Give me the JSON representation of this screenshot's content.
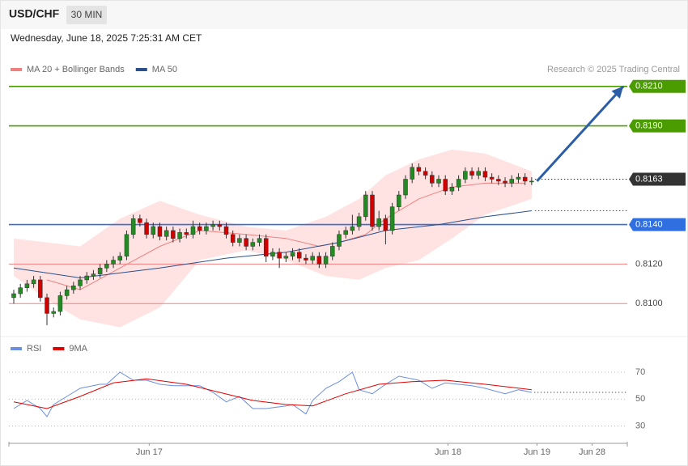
{
  "header": {
    "symbol": "USD/CHF",
    "interval": "30 MIN",
    "timestamp": "Wednesday, June 18, 2025 7:25:31 AM CET"
  },
  "chart_data": [
    {
      "type": "candlestick",
      "credit": "Research © 2025 Trading Central",
      "up_color": "#228b22",
      "down_color": "#d10000",
      "ohlc": [
        [
          0.8103,
          0.8107,
          0.81,
          0.8105
        ],
        [
          0.8105,
          0.811,
          0.8103,
          0.8108
        ],
        [
          0.8108,
          0.8112,
          0.8106,
          0.811
        ],
        [
          0.811,
          0.8114,
          0.8108,
          0.8112
        ],
        [
          0.8112,
          0.8114,
          0.8101,
          0.8103
        ],
        [
          0.8103,
          0.8105,
          0.8089,
          0.8095
        ],
        [
          0.8095,
          0.8098,
          0.8093,
          0.8096
        ],
        [
          0.8096,
          0.8106,
          0.8094,
          0.8104
        ],
        [
          0.8104,
          0.8109,
          0.8102,
          0.8107
        ],
        [
          0.8107,
          0.8111,
          0.8105,
          0.8109
        ],
        [
          0.8109,
          0.8114,
          0.8107,
          0.8112
        ],
        [
          0.8112,
          0.8116,
          0.811,
          0.8114
        ],
        [
          0.8114,
          0.8117,
          0.8112,
          0.8115
        ],
        [
          0.8115,
          0.812,
          0.8113,
          0.8118
        ],
        [
          0.8118,
          0.8122,
          0.8116,
          0.812
        ],
        [
          0.812,
          0.8124,
          0.8118,
          0.8122
        ],
        [
          0.8122,
          0.8126,
          0.812,
          0.8124
        ],
        [
          0.8124,
          0.8137,
          0.8122,
          0.8135
        ],
        [
          0.8135,
          0.8145,
          0.8133,
          0.8143
        ],
        [
          0.8143,
          0.8145,
          0.8139,
          0.8141
        ],
        [
          0.8141,
          0.8143,
          0.8133,
          0.8135
        ],
        [
          0.8135,
          0.8141,
          0.8133,
          0.8139
        ],
        [
          0.8139,
          0.8141,
          0.8132,
          0.8134
        ],
        [
          0.8134,
          0.8139,
          0.8132,
          0.8137
        ],
        [
          0.8137,
          0.8139,
          0.8131,
          0.8133
        ],
        [
          0.8133,
          0.8138,
          0.8131,
          0.8136
        ],
        [
          0.8136,
          0.8138,
          0.8133,
          0.8135
        ],
        [
          0.8135,
          0.8142,
          0.8133,
          0.8139
        ],
        [
          0.8139,
          0.8141,
          0.8135,
          0.8137
        ],
        [
          0.8137,
          0.8141,
          0.8135,
          0.8139
        ],
        [
          0.8139,
          0.8142,
          0.8137,
          0.814
        ],
        [
          0.814,
          0.8142,
          0.8137,
          0.8139
        ],
        [
          0.8139,
          0.8141,
          0.8133,
          0.8135
        ],
        [
          0.8135,
          0.8137,
          0.8129,
          0.8131
        ],
        [
          0.8131,
          0.8135,
          0.8129,
          0.8133
        ],
        [
          0.8133,
          0.8135,
          0.8127,
          0.8129
        ],
        [
          0.8129,
          0.8133,
          0.8127,
          0.8131
        ],
        [
          0.8131,
          0.8135,
          0.8129,
          0.8133
        ],
        [
          0.8133,
          0.8135,
          0.8121,
          0.8124
        ],
        [
          0.8124,
          0.8128,
          0.8122,
          0.8126
        ],
        [
          0.8126,
          0.8128,
          0.8118,
          0.8123
        ],
        [
          0.8123,
          0.8126,
          0.8121,
          0.8124
        ],
        [
          0.8124,
          0.8128,
          0.8122,
          0.8126
        ],
        [
          0.8126,
          0.8128,
          0.8121,
          0.8123
        ],
        [
          0.8123,
          0.8125,
          0.812,
          0.8122
        ],
        [
          0.8122,
          0.8126,
          0.812,
          0.8124
        ],
        [
          0.8124,
          0.8126,
          0.8118,
          0.812
        ],
        [
          0.812,
          0.8126,
          0.8118,
          0.8124
        ],
        [
          0.8124,
          0.8131,
          0.8122,
          0.8129
        ],
        [
          0.8129,
          0.8137,
          0.8127,
          0.8135
        ],
        [
          0.8135,
          0.8139,
          0.8133,
          0.8137
        ],
        [
          0.8137,
          0.8145,
          0.8135,
          0.8139
        ],
        [
          0.8139,
          0.8146,
          0.8137,
          0.8144
        ],
        [
          0.8144,
          0.8157,
          0.8142,
          0.8155
        ],
        [
          0.8155,
          0.8157,
          0.8137,
          0.8139
        ],
        [
          0.8139,
          0.8147,
          0.8137,
          0.8143
        ],
        [
          0.8143,
          0.8145,
          0.813,
          0.8137
        ],
        [
          0.8137,
          0.8151,
          0.8135,
          0.8149
        ],
        [
          0.8149,
          0.8157,
          0.8147,
          0.8155
        ],
        [
          0.8155,
          0.8165,
          0.8153,
          0.8163
        ],
        [
          0.8163,
          0.8171,
          0.8161,
          0.8169
        ],
        [
          0.8169,
          0.8171,
          0.8165,
          0.8167
        ],
        [
          0.8167,
          0.8169,
          0.8163,
          0.8165
        ],
        [
          0.8165,
          0.8167,
          0.8159,
          0.8161
        ],
        [
          0.8161,
          0.8165,
          0.8159,
          0.8163
        ],
        [
          0.8163,
          0.8165,
          0.8155,
          0.8157
        ],
        [
          0.8157,
          0.8161,
          0.8155,
          0.8159
        ],
        [
          0.8159,
          0.8165,
          0.8157,
          0.8163
        ],
        [
          0.8163,
          0.8169,
          0.8161,
          0.8167
        ],
        [
          0.8167,
          0.8169,
          0.8163,
          0.8165
        ],
        [
          0.8165,
          0.8169,
          0.8163,
          0.8167
        ],
        [
          0.8167,
          0.8169,
          0.8162,
          0.8164
        ],
        [
          0.8164,
          0.8166,
          0.8161,
          0.8163
        ],
        [
          0.8163,
          0.8165,
          0.816,
          0.8162
        ],
        [
          0.8162,
          0.8164,
          0.8159,
          0.8161
        ],
        [
          0.8161,
          0.8165,
          0.8159,
          0.8163
        ],
        [
          0.8163,
          0.8166,
          0.8161,
          0.8164
        ],
        [
          0.8164,
          0.8166,
          0.816,
          0.8162
        ],
        [
          0.8162,
          0.8164,
          0.816,
          0.8162
        ]
      ],
      "band": {
        "color": "#ffdcdc",
        "x": [
          0,
          5,
          10,
          16,
          22,
          28,
          35,
          41,
          47,
          52,
          56,
          61,
          66,
          71,
          78
        ],
        "upper": [
          0.8133,
          0.8131,
          0.8129,
          0.8143,
          0.8152,
          0.8145,
          0.8139,
          0.8137,
          0.8144,
          0.8153,
          0.8165,
          0.8173,
          0.8178,
          0.8176,
          0.8167
        ],
        "lower": [
          0.8114,
          0.8102,
          0.8092,
          0.8088,
          0.8098,
          0.8122,
          0.8127,
          0.8122,
          0.8114,
          0.8112,
          0.8118,
          0.8122,
          0.8133,
          0.8145,
          0.8153
        ]
      },
      "series": [
        {
          "name": "MA 20 + Bollinger Bands",
          "color": "#f08080",
          "x": [
            5,
            10,
            16,
            22,
            28,
            35,
            41,
            46,
            49,
            53,
            56,
            61,
            66,
            71,
            77
          ],
          "values": [
            0.8112,
            0.8107,
            0.8118,
            0.8129,
            0.8137,
            0.8135,
            0.8133,
            0.8129,
            0.8131,
            0.8135,
            0.8143,
            0.8153,
            0.8159,
            0.8161,
            0.8161
          ]
        },
        {
          "name": "MA 50",
          "color": "#2b4f8c",
          "x": [
            0,
            10,
            22,
            32,
            41,
            49,
            56,
            64,
            71,
            78
          ],
          "values": [
            0.8118,
            0.8113,
            0.8118,
            0.8123,
            0.8126,
            0.8131,
            0.8137,
            0.814,
            0.8144,
            0.8147
          ]
        }
      ],
      "levels": [
        {
          "value": 0.821,
          "label": "0.8210",
          "color": "#4a9c00",
          "line": "solid",
          "box": true
        },
        {
          "value": 0.819,
          "label": "0.8190",
          "color": "#4a9c00",
          "line": "solid",
          "box": true
        },
        {
          "value": 0.8163,
          "label": "0.8163",
          "color": "#333333",
          "line": "dotted",
          "box": true
        },
        {
          "value": 0.814,
          "label": "0.8140",
          "color": "#2f6fe0",
          "line": "solid",
          "box": true
        },
        {
          "value": 0.812,
          "label": "0.8120",
          "color": "#f08080",
          "line": "solid",
          "box": false
        },
        {
          "value": 0.81,
          "label": "0.8100",
          "color": "#f08080",
          "line": "solid",
          "box": false
        }
      ],
      "forecast": {
        "color": "#2b5ea7",
        "x": [
          78.8,
          91.8
        ],
        "values": [
          0.8162,
          0.821
        ]
      },
      "xlim": [
        -0.73,
        92.4
      ],
      "ylim": [
        0.80837,
        0.82386
      ]
    },
    {
      "type": "line",
      "series": [
        {
          "name": "RSI",
          "color": "#6a8ee0",
          "x": [
            0,
            2,
            4,
            5,
            6,
            8,
            10,
            13,
            14,
            16,
            18,
            20,
            22,
            24,
            26,
            28,
            30,
            32,
            34,
            36,
            38,
            41,
            42,
            44,
            45,
            47,
            49,
            51,
            52,
            54,
            56,
            58,
            60,
            61,
            63,
            65,
            67,
            69,
            71,
            74,
            76,
            78
          ],
          "values": [
            43,
            49,
            43,
            37,
            46,
            52,
            58,
            61,
            61,
            70,
            64,
            64,
            61,
            60,
            60,
            60,
            55,
            48,
            52,
            43,
            43,
            45,
            46,
            39,
            49,
            58,
            63,
            70,
            57,
            54,
            61,
            67,
            65,
            64,
            58,
            62,
            61,
            60,
            58,
            54,
            57,
            55
          ]
        },
        {
          "name": "9MA",
          "color": "#e00000",
          "x": [
            0,
            5,
            10,
            15,
            20,
            26,
            31,
            36,
            41,
            45,
            50,
            55,
            60,
            65,
            71,
            78
          ],
          "values": [
            48,
            43,
            52,
            62,
            65,
            61,
            55,
            49,
            46,
            45,
            54,
            61,
            63,
            64,
            61,
            57
          ]
        }
      ],
      "xlim": [
        -0.73,
        92.4
      ],
      "ylim": [
        19,
        82
      ],
      "yticks": [
        30,
        50,
        70
      ],
      "grid": true,
      "xticks": [
        {
          "value": 20.4,
          "label": "Jun 17"
        },
        {
          "value": 65.4,
          "label": "Jun 18"
        },
        {
          "value": 78.8,
          "label": "Jun 19"
        },
        {
          "value": 87.1,
          "label": "Jun 28"
        }
      ]
    }
  ]
}
